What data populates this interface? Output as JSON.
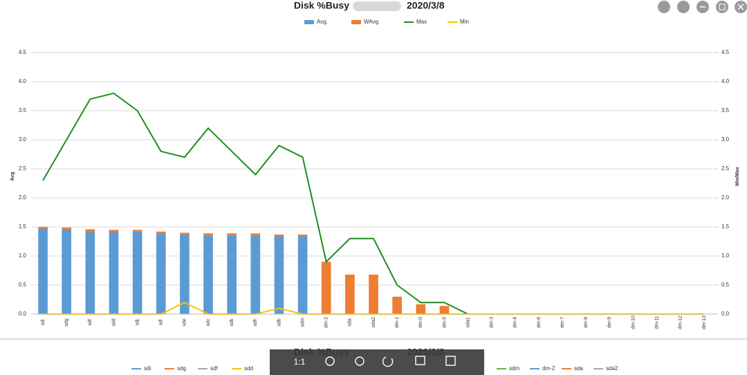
{
  "chart_data": {
    "type": "bar-line",
    "title": "Disk %Busy",
    "title_date": "2020/3/8",
    "y_label": "Avg",
    "y2_label": "Min/Max",
    "categories": [
      "sdi",
      "sdg",
      "sdf",
      "sdd",
      "sdj",
      "sdl",
      "sde",
      "sdc",
      "sdk",
      "sdh",
      "sdb",
      "sdm",
      "dm-2",
      "sda",
      "sda2",
      "dm-1",
      "dm-0",
      "dm-5",
      "sda1",
      "dm-3",
      "dm-4",
      "dm-6",
      "dm-7",
      "dm-8",
      "dm-9",
      "dm-10",
      "dm-11",
      "dm-12",
      "dm-13"
    ],
    "series": [
      {
        "name": "Avg.",
        "kind": "bar",
        "color": "#5b9bd5",
        "values": [
          1.47,
          1.46,
          1.41,
          1.41,
          1.42,
          1.38,
          1.37,
          1.36,
          1.36,
          1.36,
          1.34,
          1.34,
          0,
          0,
          0,
          0,
          0,
          0,
          0,
          0,
          0,
          0,
          0,
          0,
          0,
          0,
          0,
          0,
          0
        ]
      },
      {
        "name": "WAvg.",
        "kind": "bar",
        "color": "#ed7d31",
        "values": [
          0.03,
          0.03,
          0.05,
          0.04,
          0.03,
          0.04,
          0.03,
          0.03,
          0.03,
          0.03,
          0.03,
          0.03,
          0.9,
          0.68,
          0.68,
          0.3,
          0.17,
          0.14,
          0,
          0,
          0,
          0,
          0,
          0,
          0,
          0,
          0,
          0,
          0
        ]
      },
      {
        "name": "Max",
        "kind": "line",
        "axis": "y2",
        "color": "#1e8c1e",
        "values": [
          2.3,
          3.0,
          3.7,
          3.8,
          3.5,
          2.8,
          2.7,
          3.2,
          2.8,
          2.4,
          2.9,
          2.7,
          0.9,
          1.3,
          1.3,
          0.5,
          0.2,
          0.2,
          0,
          0,
          0,
          0,
          0,
          0,
          0,
          0,
          0,
          0,
          0
        ]
      },
      {
        "name": "Min",
        "kind": "line",
        "axis": "y2",
        "color": "#ffc000",
        "values": [
          0,
          0,
          0,
          0,
          0,
          0,
          0.2,
          0,
          0,
          0,
          0.1,
          0,
          0,
          0,
          0,
          0,
          0,
          0,
          0,
          0,
          0,
          0,
          0,
          0,
          0,
          0,
          0,
          0,
          0
        ]
      }
    ],
    "ylim": [
      0,
      4.5
    ],
    "yticks": [
      {
        "value": 0,
        "label": "0.0"
      },
      {
        "value": 0.5,
        "label": "0.5"
      },
      {
        "value": 1,
        "label": "1.0"
      },
      {
        "value": 1.5,
        "label": "1.5"
      },
      {
        "value": 2,
        "label": "2.0"
      },
      {
        "value": 2.5,
        "label": "2.5"
      },
      {
        "value": 3,
        "label": "3.0"
      },
      {
        "value": 3.5,
        "label": "3.5"
      },
      {
        "value": 4,
        "label": "4.0"
      },
      {
        "value": 4.5,
        "label": "4.5"
      }
    ],
    "y2lim": [
      0,
      4.5
    ],
    "y2ticks": [
      {
        "value": 0,
        "label": "0.0"
      },
      {
        "value": 0.5,
        "label": "0.5"
      },
      {
        "value": 1,
        "label": "1.0"
      },
      {
        "value": 1.5,
        "label": "1.5"
      },
      {
        "value": 2,
        "label": "2.0"
      },
      {
        "value": 2.5,
        "label": "2.5"
      },
      {
        "value": 3,
        "label": "3.0"
      },
      {
        "value": 3.5,
        "label": "3.5"
      },
      {
        "value": 4,
        "label": "4.0"
      },
      {
        "value": 4.5,
        "label": "4.5"
      }
    ],
    "grid": true,
    "legend": "top"
  },
  "bottom_panel": {
    "title": "Disk %Busy",
    "date": "2020/3/8",
    "legend": [
      {
        "name": "sdi",
        "color": "#5b9bd5"
      },
      {
        "name": "sdg",
        "color": "#ed7d31"
      },
      {
        "name": "sdf",
        "color": "#a5a5a5"
      },
      {
        "name": "sdd",
        "color": "#ffc000"
      },
      {
        "name": "sdm",
        "color": "#70ad47"
      },
      {
        "name": "dm-2",
        "color": "#5b9bd5"
      },
      {
        "name": "sda",
        "color": "#ed7d31"
      },
      {
        "name": "sda2",
        "color": "#a5a5a5"
      }
    ]
  },
  "toolbar": {
    "zoom_label": "1:1"
  }
}
